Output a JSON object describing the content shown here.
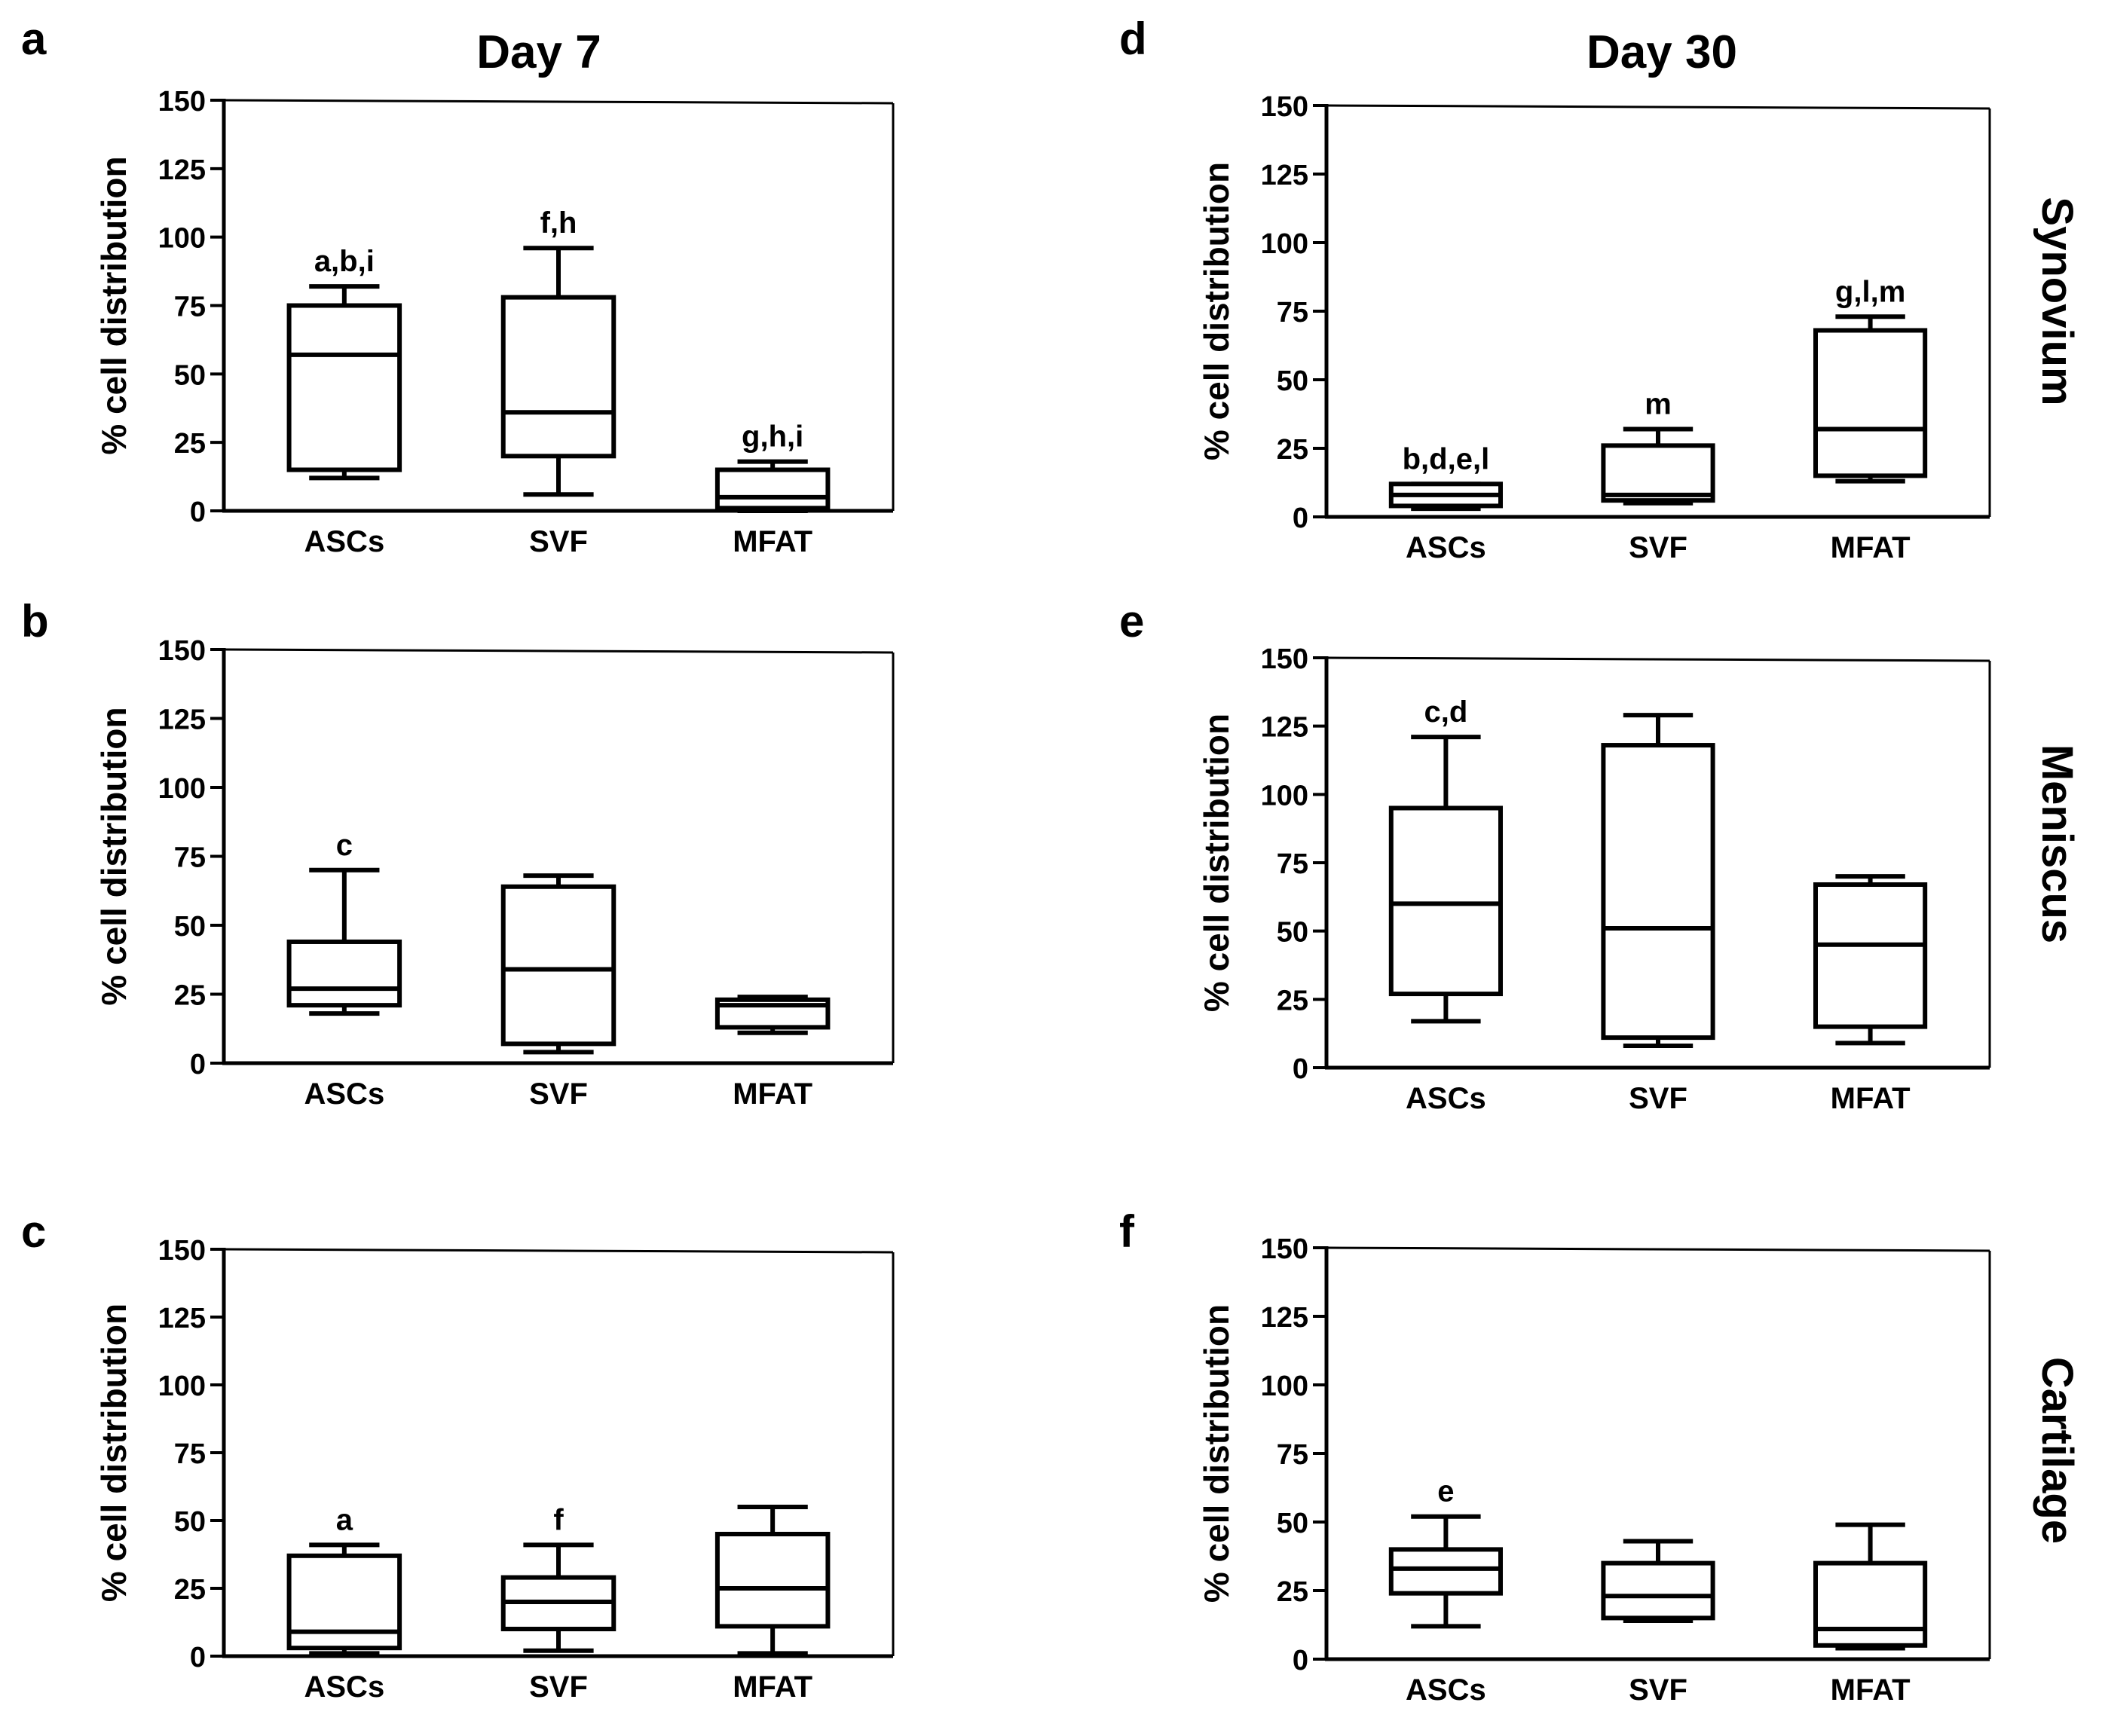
{
  "columns": [
    {
      "title": "Day 7"
    },
    {
      "title": "Day 30"
    }
  ],
  "rows": [
    {
      "label": "Synovium"
    },
    {
      "label": "Meniscus"
    },
    {
      "label": "Cartilage"
    }
  ],
  "chart_data": [
    {
      "panel": "a",
      "type": "box",
      "column": 0,
      "row": 0,
      "ylabel": "% cell distribution",
      "ylim": [
        0,
        150
      ],
      "yticks": [
        0,
        25,
        50,
        75,
        100,
        125,
        150
      ],
      "categories": [
        "ASCs",
        "SVF",
        "MFAT"
      ],
      "boxes": [
        {
          "min": 12,
          "q1": 15,
          "median": 57,
          "q3": 75,
          "max": 82,
          "annotation": "a,b,i"
        },
        {
          "min": 6,
          "q1": 20,
          "median": 36,
          "q3": 78,
          "max": 96,
          "annotation": "f,h"
        },
        {
          "min": 0,
          "q1": 1,
          "median": 5,
          "q3": 15,
          "max": 18,
          "annotation": "g,h,i"
        }
      ]
    },
    {
      "panel": "b",
      "type": "box",
      "column": 0,
      "row": 1,
      "ylabel": "% cell distribution",
      "ylim": [
        0,
        150
      ],
      "yticks": [
        0,
        25,
        50,
        75,
        100,
        125,
        150
      ],
      "categories": [
        "ASCs",
        "SVF",
        "MFAT"
      ],
      "boxes": [
        {
          "min": 18,
          "q1": 21,
          "median": 27,
          "q3": 44,
          "max": 70,
          "annotation": "c"
        },
        {
          "min": 4,
          "q1": 7,
          "median": 34,
          "q3": 64,
          "max": 68,
          "annotation": ""
        },
        {
          "min": 11,
          "q1": 13,
          "median": 21,
          "q3": 23,
          "max": 24,
          "annotation": ""
        }
      ]
    },
    {
      "panel": "c",
      "type": "box",
      "column": 0,
      "row": 2,
      "ylabel": "% cell distribution",
      "ylim": [
        0,
        150
      ],
      "yticks": [
        0,
        25,
        50,
        75,
        100,
        125,
        150
      ],
      "categories": [
        "ASCs",
        "SVF",
        "MFAT"
      ],
      "boxes": [
        {
          "min": 1,
          "q1": 3,
          "median": 9,
          "q3": 37,
          "max": 41,
          "annotation": "a"
        },
        {
          "min": 2,
          "q1": 10,
          "median": 20,
          "q3": 29,
          "max": 41,
          "annotation": "f"
        },
        {
          "min": 1,
          "q1": 11,
          "median": 25,
          "q3": 45,
          "max": 55,
          "annotation": ""
        }
      ]
    },
    {
      "panel": "d",
      "type": "box",
      "column": 1,
      "row": 0,
      "ylabel": "% cell distribution",
      "ylim": [
        0,
        150
      ],
      "yticks": [
        0,
        25,
        50,
        75,
        100,
        125,
        150
      ],
      "categories": [
        "ASCs",
        "SVF",
        "MFAT"
      ],
      "boxes": [
        {
          "min": 3,
          "q1": 4,
          "median": 8,
          "q3": 12,
          "max": 12,
          "annotation": "b,d,e,l"
        },
        {
          "min": 5,
          "q1": 6,
          "median": 8,
          "q3": 26,
          "max": 32,
          "annotation": "m"
        },
        {
          "min": 13,
          "q1": 15,
          "median": 32,
          "q3": 68,
          "max": 73,
          "annotation": "g,l,m"
        }
      ]
    },
    {
      "panel": "e",
      "type": "box",
      "column": 1,
      "row": 1,
      "ylabel": "% cell distribution",
      "ylim": [
        0,
        150
      ],
      "yticks": [
        0,
        25,
        50,
        75,
        100,
        125,
        150
      ],
      "categories": [
        "ASCs",
        "SVF",
        "MFAT"
      ],
      "boxes": [
        {
          "min": 17,
          "q1": 27,
          "median": 60,
          "q3": 95,
          "max": 121,
          "annotation": "c,d"
        },
        {
          "min": 8,
          "q1": 11,
          "median": 51,
          "q3": 118,
          "max": 129,
          "annotation": ""
        },
        {
          "min": 9,
          "q1": 15,
          "median": 45,
          "q3": 67,
          "max": 70,
          "annotation": ""
        }
      ]
    },
    {
      "panel": "f",
      "type": "box",
      "column": 1,
      "row": 2,
      "ylabel": "% cell distribution",
      "ylim": [
        0,
        150
      ],
      "yticks": [
        0,
        25,
        50,
        75,
        100,
        125,
        150
      ],
      "categories": [
        "ASCs",
        "SVF",
        "MFAT"
      ],
      "boxes": [
        {
          "min": 12,
          "q1": 24,
          "median": 33,
          "q3": 40,
          "max": 52,
          "annotation": "e"
        },
        {
          "min": 14,
          "q1": 15,
          "median": 23,
          "q3": 35,
          "max": 43,
          "annotation": ""
        },
        {
          "min": 4,
          "q1": 5,
          "median": 11,
          "q3": 35,
          "max": 49,
          "annotation": ""
        }
      ]
    }
  ]
}
